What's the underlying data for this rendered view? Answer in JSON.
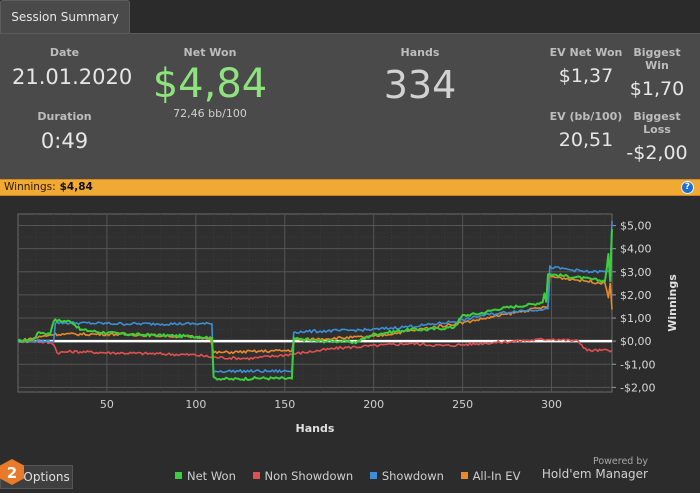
{
  "tab": {
    "label": "Session Summary"
  },
  "summary": {
    "date_label": "Date",
    "date": "21.01.2020",
    "duration_label": "Duration",
    "duration": "0:49",
    "netwon_label": "Net Won",
    "netwon": "$4,84",
    "bb100": "72,46 bb/100",
    "hands_label": "Hands",
    "hands": "334",
    "ev_netwon_label": "EV Net Won",
    "ev_netwon": "$1,37",
    "biggest_win_label": "Biggest Win",
    "biggest_win": "$1,70",
    "ev_bb100_label": "EV (bb/100)",
    "ev_bb100": "20,51",
    "biggest_loss_label": "Biggest Loss",
    "biggest_loss": "-$2,00"
  },
  "winnings_bar": {
    "label": "Winnings:",
    "value": "$4,84",
    "help": "?"
  },
  "chart_data": {
    "type": "line",
    "xlabel": "Hands",
    "ylabel": "Winnings",
    "xlim": [
      0,
      334
    ],
    "ylim": [
      -2.2,
      5.5
    ],
    "x_ticks": [
      50,
      100,
      150,
      200,
      250,
      300
    ],
    "y_ticks": [
      5,
      4,
      3,
      2,
      1,
      0,
      -1,
      -2
    ],
    "y_tick_labels": [
      "$5,00",
      "$4,00",
      "$3,00",
      "$2,00",
      "$1,00",
      "$0,00",
      "-$1,00",
      "-$2,00"
    ],
    "grid": true,
    "legend": "bottom",
    "series": [
      {
        "name": "Net Won",
        "color": "#3ccf3c",
        "points": [
          [
            0,
            0
          ],
          [
            8,
            0.05
          ],
          [
            12,
            0.4
          ],
          [
            18,
            0.3
          ],
          [
            20,
            0.9
          ],
          [
            30,
            0.85
          ],
          [
            35,
            0.5
          ],
          [
            45,
            0.4
          ],
          [
            60,
            0.3
          ],
          [
            80,
            0.25
          ],
          [
            100,
            0.2
          ],
          [
            108,
            0.15
          ],
          [
            110,
            -1.6
          ],
          [
            120,
            -1.65
          ],
          [
            135,
            -1.6
          ],
          [
            154,
            -1.62
          ],
          [
            155,
            0.1
          ],
          [
            170,
            0.0
          ],
          [
            180,
            0.0
          ],
          [
            190,
            -0.05
          ],
          [
            200,
            0.3
          ],
          [
            210,
            0.4
          ],
          [
            220,
            0.5
          ],
          [
            230,
            0.5
          ],
          [
            245,
            0.6
          ],
          [
            250,
            1.1
          ],
          [
            260,
            1.2
          ],
          [
            270,
            1.4
          ],
          [
            280,
            1.5
          ],
          [
            290,
            1.6
          ],
          [
            295,
            1.7
          ],
          [
            298,
            2.9
          ],
          [
            310,
            2.8
          ],
          [
            320,
            2.7
          ],
          [
            330,
            2.6
          ],
          [
            334,
            4.84
          ]
        ]
      },
      {
        "name": "Non Showdown",
        "color": "#e05050",
        "points": [
          [
            0,
            0
          ],
          [
            10,
            0.0
          ],
          [
            20,
            -0.1
          ],
          [
            22,
            -0.5
          ],
          [
            30,
            -0.45
          ],
          [
            50,
            -0.5
          ],
          [
            80,
            -0.55
          ],
          [
            100,
            -0.6
          ],
          [
            110,
            -0.7
          ],
          [
            130,
            -0.75
          ],
          [
            150,
            -0.6
          ],
          [
            160,
            -0.5
          ],
          [
            180,
            -0.3
          ],
          [
            200,
            -0.2
          ],
          [
            220,
            -0.1
          ],
          [
            240,
            -0.2
          ],
          [
            260,
            -0.1
          ],
          [
            280,
            0.0
          ],
          [
            300,
            0.1
          ],
          [
            315,
            0.0
          ],
          [
            320,
            -0.4
          ],
          [
            334,
            -0.4
          ]
        ]
      },
      {
        "name": "Showdown",
        "color": "#3c8fd6",
        "points": [
          [
            0,
            0
          ],
          [
            20,
            0.0
          ],
          [
            21,
            0.8
          ],
          [
            60,
            0.75
          ],
          [
            108,
            0.75
          ],
          [
            110,
            -1.3
          ],
          [
            154,
            -1.3
          ],
          [
            155,
            0.4
          ],
          [
            180,
            0.45
          ],
          [
            200,
            0.5
          ],
          [
            230,
            0.7
          ],
          [
            250,
            0.9
          ],
          [
            260,
            1.1
          ],
          [
            280,
            1.3
          ],
          [
            298,
            1.4
          ],
          [
            299,
            3.2
          ],
          [
            320,
            3.0
          ],
          [
            333,
            3.0
          ],
          [
            334,
            5.2
          ]
        ]
      },
      {
        "name": "All-In EV",
        "color": "#e88a2a",
        "points": [
          [
            0,
            0
          ],
          [
            20,
            0.3
          ],
          [
            60,
            0.3
          ],
          [
            108,
            0.15
          ],
          [
            110,
            -0.5
          ],
          [
            154,
            -0.4
          ],
          [
            155,
            0.05
          ],
          [
            200,
            0.2
          ],
          [
            250,
            0.8
          ],
          [
            298,
            1.5
          ],
          [
            299,
            2.8
          ],
          [
            330,
            2.5
          ],
          [
            334,
            1.37
          ]
        ]
      }
    ]
  },
  "legend_items": [
    {
      "name": "Net Won",
      "color": "#3ccf3c"
    },
    {
      "name": "Non Showdown",
      "color": "#e05050"
    },
    {
      "name": "Showdown",
      "color": "#3c8fd6"
    },
    {
      "name": "All-In EV",
      "color": "#e88a2a"
    }
  ],
  "footer": {
    "options_label": "Options",
    "powered_by": "Powered by",
    "brand": "Hold'em Manager",
    "logo_number": "2"
  }
}
